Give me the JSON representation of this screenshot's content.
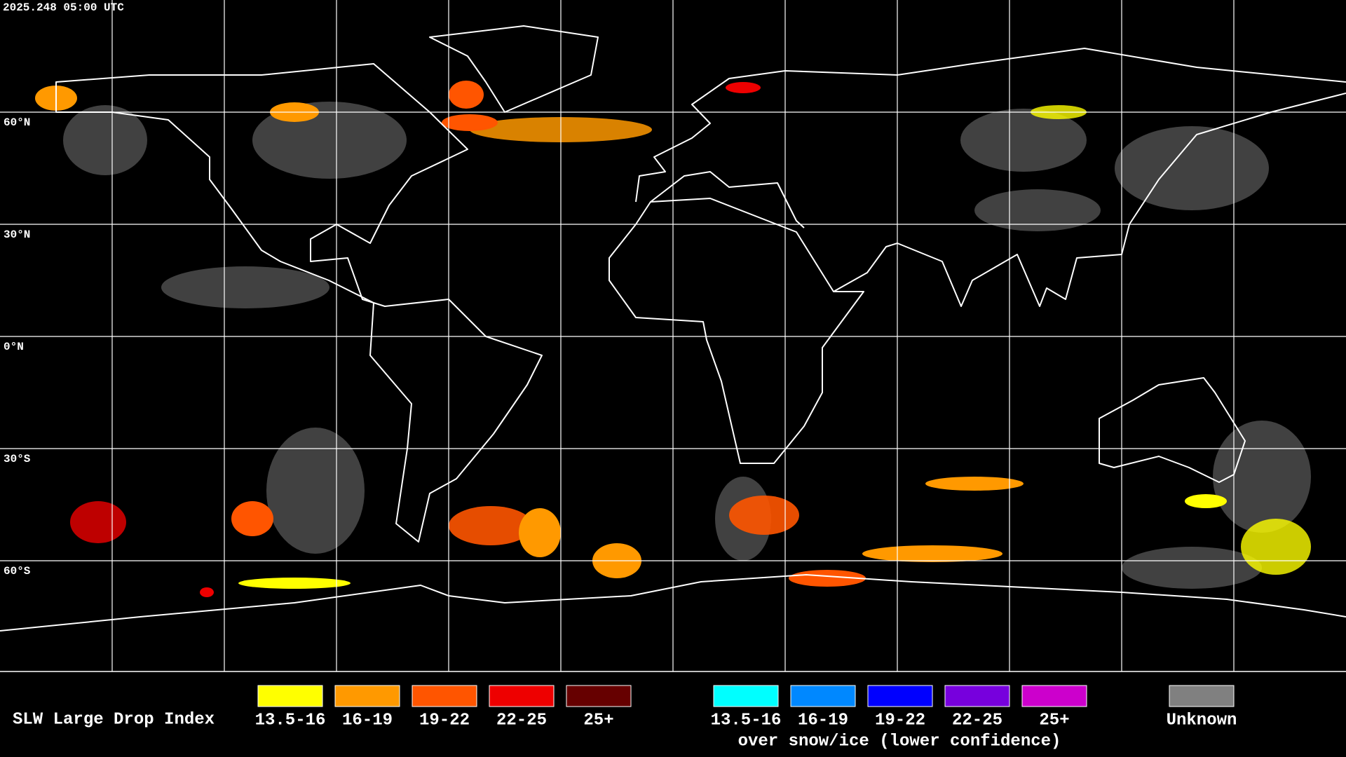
{
  "header": {
    "timestamp": "2025.248 05:00 UTC"
  },
  "map": {
    "lat_labels": [
      "60°N",
      "30°N",
      "0°N",
      "30°S",
      "60°S"
    ]
  },
  "legend": {
    "title": "SLW Large Drop Index",
    "items": [
      {
        "label": "13.5-16",
        "color": "#ffff00"
      },
      {
        "label": "16-19",
        "color": "#ff9900"
      },
      {
        "label": "19-22",
        "color": "#ff5500"
      },
      {
        "label": "22-25",
        "color": "#ee0000"
      },
      {
        "label": "25+",
        "color": "#660000"
      }
    ],
    "snow_items": [
      {
        "label": "13.5-16",
        "color": "#00ffff"
      },
      {
        "label": "16-19",
        "color": "#0088ff"
      },
      {
        "label": "19-22",
        "color": "#0000ff"
      },
      {
        "label": "22-25",
        "color": "#7700dd"
      },
      {
        "label": "25+",
        "color": "#cc00cc"
      }
    ],
    "snow_caption": "over snow/ice (lower confidence)",
    "unknown": {
      "label": "Unknown",
      "color": "#808080"
    }
  }
}
